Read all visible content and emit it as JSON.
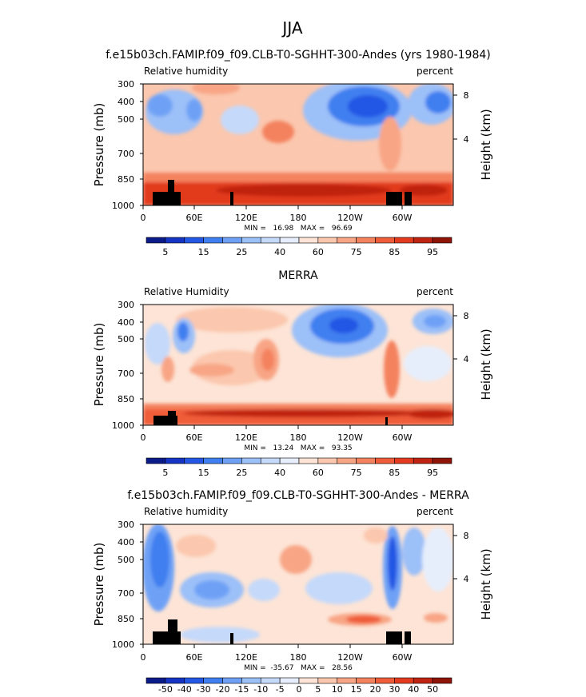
{
  "figure": {
    "season": "JJA"
  },
  "chart_data": [
    {
      "type": "heatmap",
      "title": "f.e15b03ch.FAMIP.f09_f09.CLB-T0-SGHHT-300-Andes (yrs 1980-1984)",
      "variable": "Relative humidity",
      "units": "percent",
      "ylabel": "Pressure (mb)",
      "ylabel_right": "Height (km)",
      "x_ticks": [
        "0",
        "60E",
        "120E",
        "180",
        "120W",
        "60W"
      ],
      "y_ticks": [
        "300",
        "400",
        "500",
        "700",
        "850",
        "1000"
      ],
      "height_ticks": [
        "8",
        "4"
      ],
      "stats": "MIN =   16.98   MAX =   96.69",
      "colorbar": {
        "labels": [
          "5",
          "15",
          "25",
          "40",
          "60",
          "75",
          "85",
          "95"
        ],
        "colors": [
          "#0b1b8a",
          "#1534c4",
          "#2457e4",
          "#3f7ff0",
          "#6ea1f6",
          "#9cc0f8",
          "#c5d9fa",
          "#e6eefc",
          "#fde4d6",
          "#fbc7ae",
          "#f8a585",
          "#f4825e",
          "#ef5c39",
          "#e23b1f",
          "#bf2311",
          "#8e1408"
        ]
      }
    },
    {
      "type": "heatmap",
      "title": "MERRA",
      "variable": "Relative Humidity",
      "units": "percent",
      "ylabel": "Pressure (mb)",
      "ylabel_right": "Height (km)",
      "x_ticks": [
        "0",
        "60E",
        "120E",
        "180",
        "120W",
        "60W"
      ],
      "y_ticks": [
        "300",
        "400",
        "500",
        "700",
        "850",
        "1000"
      ],
      "height_ticks": [
        "8",
        "4"
      ],
      "stats": "MIN =   13.24   MAX =   93.35",
      "colorbar": {
        "labels": [
          "5",
          "15",
          "25",
          "40",
          "60",
          "75",
          "85",
          "95"
        ],
        "colors": [
          "#0b1b8a",
          "#1534c4",
          "#2457e4",
          "#3f7ff0",
          "#6ea1f6",
          "#9cc0f8",
          "#c5d9fa",
          "#e6eefc",
          "#fde4d6",
          "#fbc7ae",
          "#f8a585",
          "#f4825e",
          "#ef5c39",
          "#e23b1f",
          "#bf2311",
          "#8e1408"
        ]
      }
    },
    {
      "type": "heatmap",
      "title": "f.e15b03ch.FAMIP.f09_f09.CLB-T0-SGHHT-300-Andes - MERRA",
      "variable": "Relative humidity",
      "units": "percent",
      "ylabel": "Pressure (mb)",
      "ylabel_right": "Height (km)",
      "x_ticks": [
        "0",
        "60E",
        "120E",
        "180",
        "120W",
        "60W"
      ],
      "y_ticks": [
        "300",
        "400",
        "500",
        "700",
        "850",
        "1000"
      ],
      "height_ticks": [
        "8",
        "4"
      ],
      "stats": "MIN =  -35.67   MAX =   28.56",
      "colorbar": {
        "labels": [
          "-50",
          "-40",
          "-30",
          "-20",
          "-15",
          "-10",
          "-5",
          "0",
          "5",
          "10",
          "15",
          "20",
          "30",
          "40",
          "50"
        ],
        "colors": [
          "#0b1b8a",
          "#1534c4",
          "#2457e4",
          "#3f7ff0",
          "#6ea1f6",
          "#9cc0f8",
          "#c5d9fa",
          "#e6eefc",
          "#fde4d6",
          "#fbc7ae",
          "#f8a585",
          "#f4825e",
          "#ef5c39",
          "#e23b1f",
          "#bf2311",
          "#8e1408"
        ]
      }
    }
  ]
}
